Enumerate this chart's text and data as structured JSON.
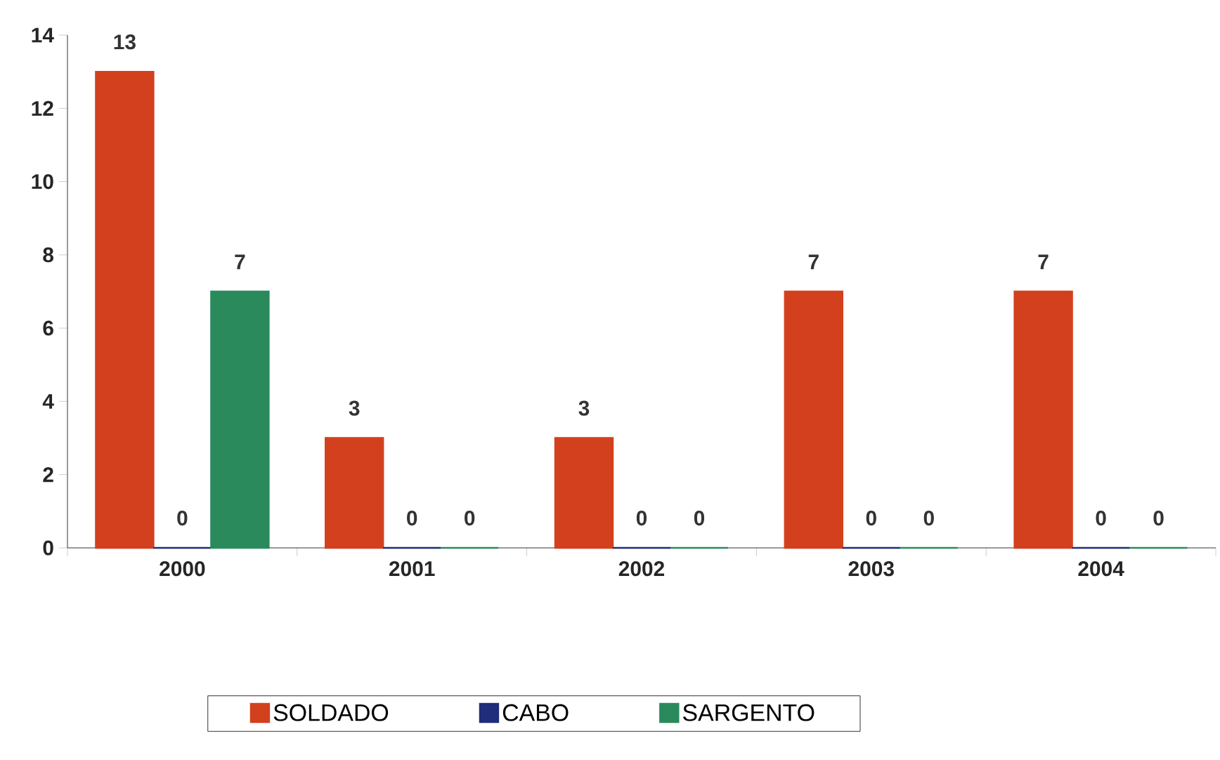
{
  "chart_data": {
    "type": "bar",
    "categories": [
      "2000",
      "2001",
      "2002",
      "2003",
      "2004"
    ],
    "series": [
      {
        "name": "SOLDADO",
        "color": "#d3401e",
        "values": [
          13,
          3,
          3,
          7,
          7
        ]
      },
      {
        "name": "CABO",
        "color": "#1f2d7a",
        "values": [
          0,
          0,
          0,
          0,
          0
        ]
      },
      {
        "name": "SARGENTO",
        "color": "#2a8a5c",
        "values": [
          7,
          0,
          0,
          0,
          0
        ]
      }
    ],
    "ylim": [
      0,
      14
    ],
    "yticks": [
      0,
      2,
      4,
      6,
      8,
      10,
      12,
      14
    ],
    "data_labels": true,
    "legend": "bottom",
    "grid": false
  }
}
